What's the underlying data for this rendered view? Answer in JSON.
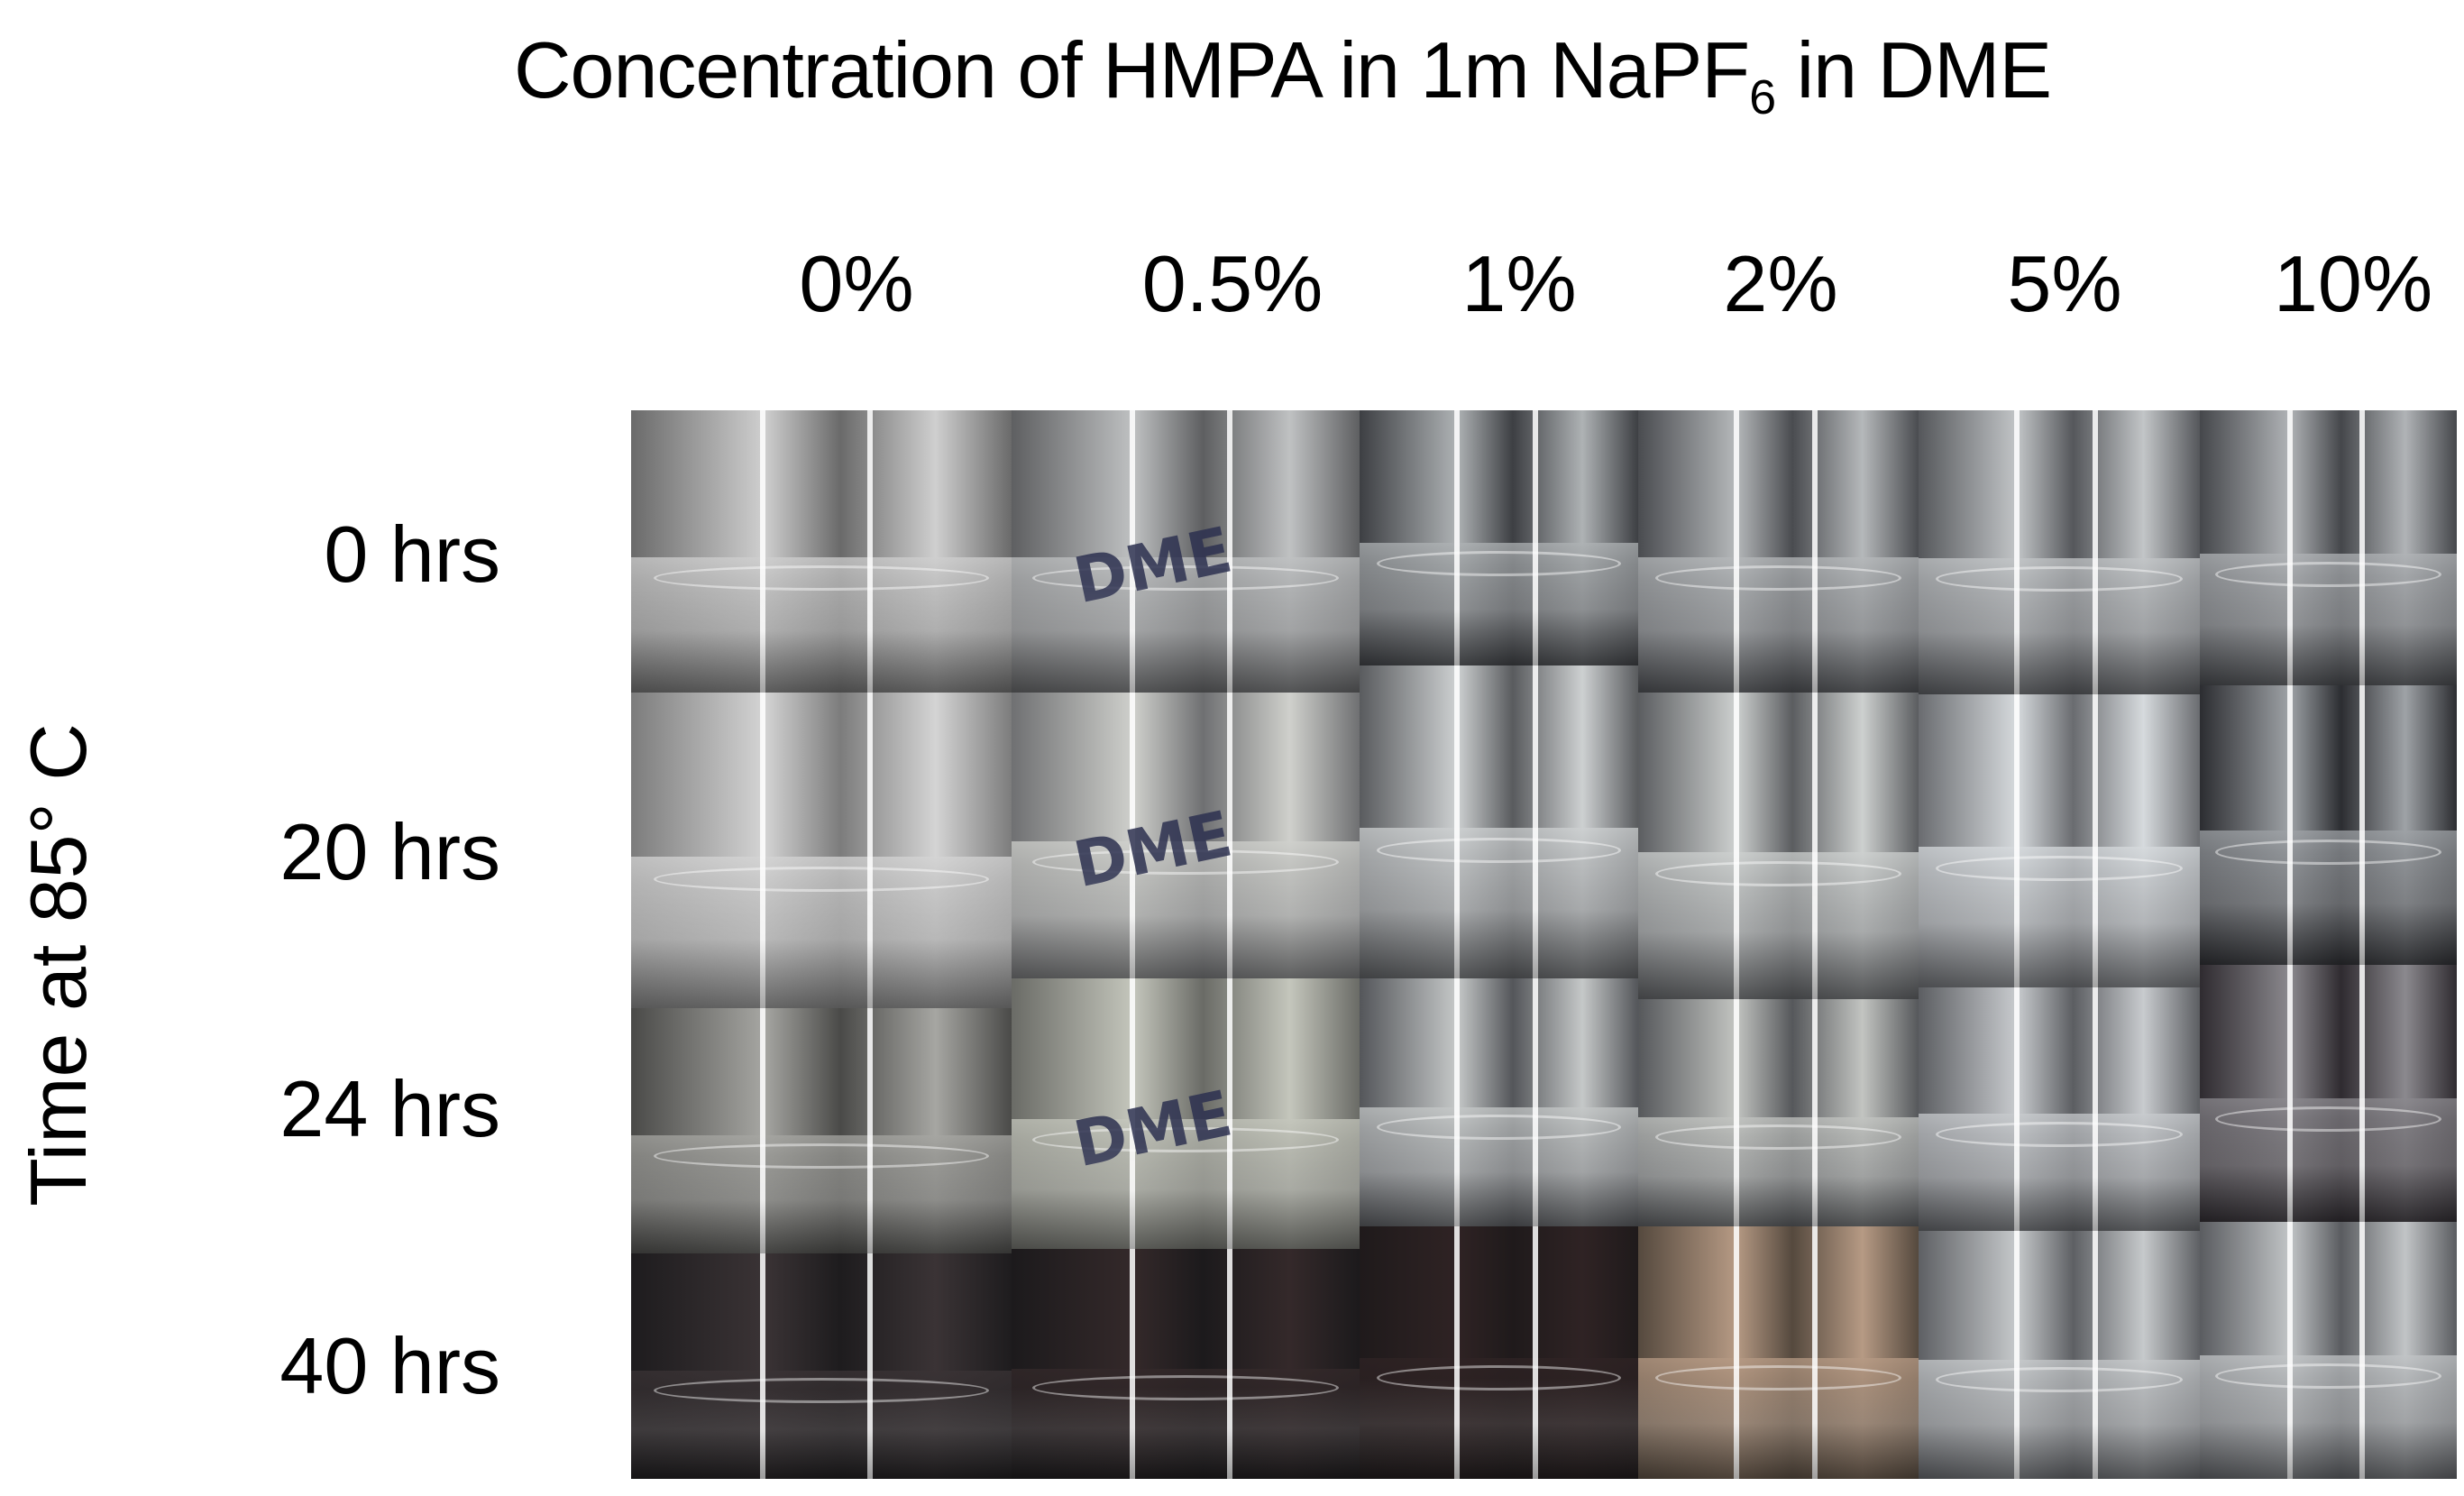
{
  "title": {
    "main": "Concentration of HMPA in 1m NaPF",
    "subscript": "6",
    "suffix": " in DME"
  },
  "y_axis_label": "Time at 85° C",
  "columns": [
    "0%",
    "0.5%",
    "1%",
    "2%",
    "5%",
    "10%"
  ],
  "rows": [
    "0 hrs",
    "20 hrs",
    "24 hrs",
    "40 hrs"
  ],
  "photo_cells": [
    [
      {
        "tone": "#6a6a6a",
        "liquid": "#cfcfcf"
      },
      {
        "tone": "#5e5f61",
        "liquid": "#bfc1c2",
        "label": "DME"
      },
      {
        "tone": "#3d3f43",
        "liquid": "#aeb2b4"
      },
      {
        "tone": "#4a4c50",
        "liquid": "#b5b8ba"
      },
      {
        "tone": "#55575b",
        "liquid": "#c2c5c7"
      },
      {
        "tone": "#45474b",
        "liquid": "#b0b3b6"
      }
    ],
    [
      {
        "tone": "#7c7c7c",
        "liquid": "#d4d4d4"
      },
      {
        "tone": "#6f7072",
        "liquid": "#cfd0cc",
        "label": "DME"
      },
      {
        "tone": "#595b5e",
        "liquid": "#cdd0d1"
      },
      {
        "tone": "#5b5d60",
        "liquid": "#cdd0cf"
      },
      {
        "tone": "#6a6c70",
        "liquid": "#d6dadd"
      },
      {
        "tone": "#2c2d31",
        "liquid": "#9ea2a6"
      }
    ],
    [
      {
        "tone": "#4a4a48",
        "liquid": "#a6a6a2"
      },
      {
        "tone": "#6a6b66",
        "liquid": "#c4c6bc",
        "label": "DME"
      },
      {
        "tone": "#54565a",
        "liquid": "#c5c8c8"
      },
      {
        "tone": "#56585b",
        "liquid": "#c2c4c1"
      },
      {
        "tone": "#5c5e62",
        "liquid": "#c8cbce"
      },
      {
        "tone": "#2f2b30",
        "liquid": "#8b898e"
      }
    ],
    [
      {
        "tone": "#1e1c1e",
        "liquid": "#3a3335"
      },
      {
        "tone": "#1c1a1c",
        "liquid": "#34292a"
      },
      {
        "tone": "#1f1a1b",
        "liquid": "#2f2324"
      },
      {
        "tone": "#55493e",
        "liquid": "#b69a84"
      },
      {
        "tone": "#5e6064",
        "liquid": "#c6c9cb"
      },
      {
        "tone": "#5a5c60",
        "liquid": "#c1c4c6"
      }
    ]
  ],
  "colors": {
    "background": "#ffffff",
    "text": "#000000"
  }
}
